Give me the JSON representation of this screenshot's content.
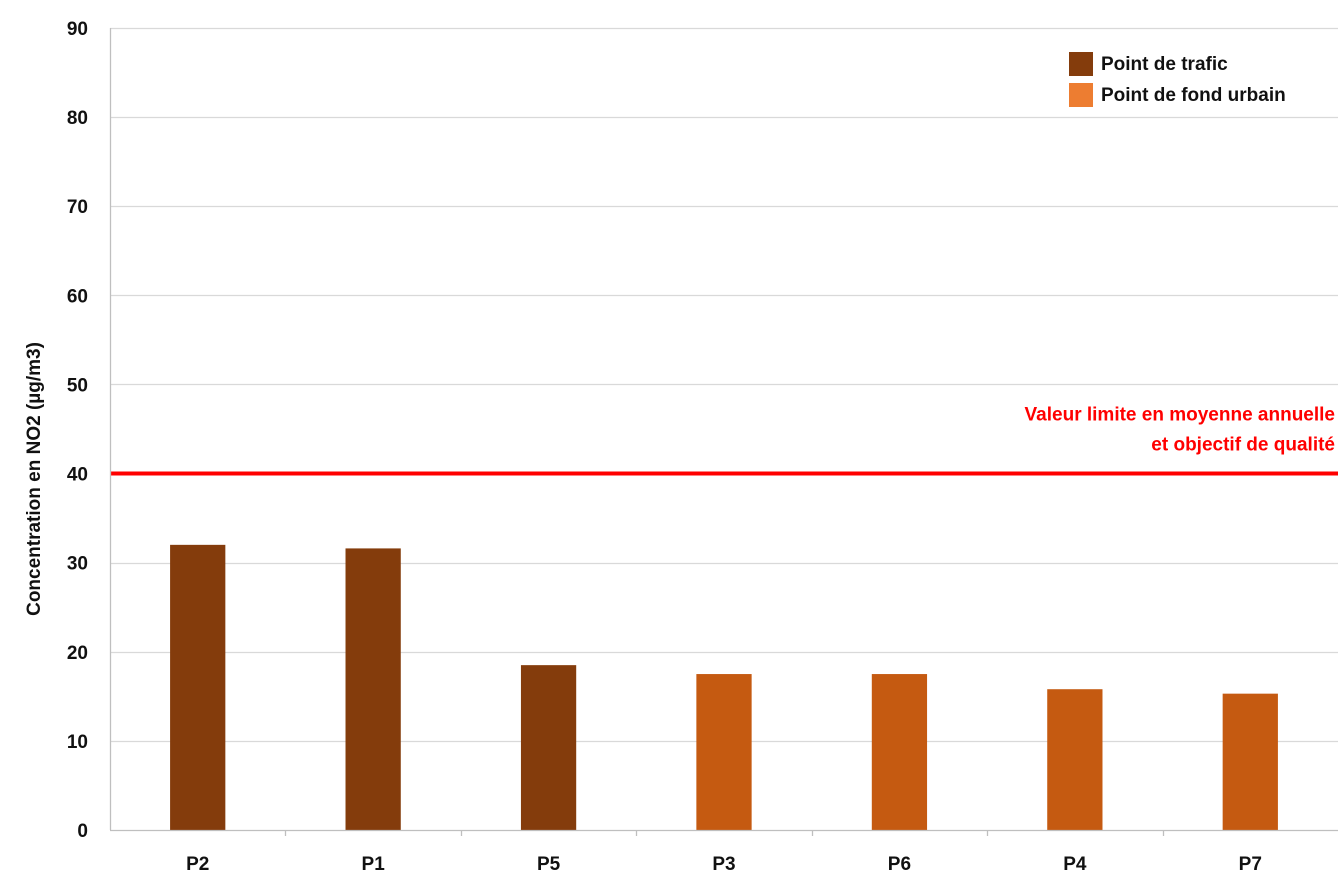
{
  "chart_data": {
    "type": "bar",
    "title": "",
    "xlabel": "",
    "ylabel": "Concentration en NO2 (µg/m3)",
    "ylim": [
      0,
      90
    ],
    "y_ticks": [
      0,
      10,
      20,
      30,
      40,
      50,
      60,
      70,
      80,
      90
    ],
    "grid": true,
    "legend_position": "top-right",
    "categories": [
      "P2",
      "P1",
      "P5",
      "P3",
      "P6",
      "P4",
      "P7"
    ],
    "values": [
      32,
      31.6,
      18.5,
      17.5,
      17.5,
      15.8,
      15.3
    ],
    "bar_series": [
      "traffic",
      "traffic",
      "traffic",
      "urban",
      "urban",
      "urban",
      "urban"
    ],
    "series": [
      {
        "key": "traffic",
        "name": "Point de trafic",
        "color": "#843C0C"
      },
      {
        "key": "urban",
        "name": "Point de fond urbain",
        "color": "#C55A11",
        "legend_color": "#ED7D31"
      }
    ],
    "reference_line": {
      "value": 40,
      "color": "#FF0000",
      "label_line1": "Valeur limite en moyenne annuelle",
      "label_line2": "et objectif de qualité"
    },
    "colors": {
      "grid": "#D9D9D9",
      "axis": "#BFBFBF",
      "text": "#111111"
    }
  }
}
